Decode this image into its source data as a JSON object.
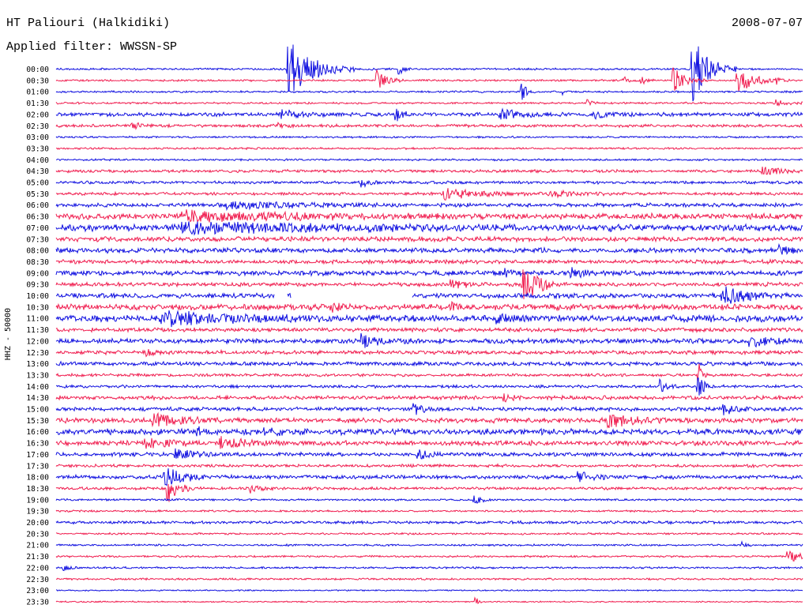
{
  "header": {
    "title": "HT Paliouri (Halkidiki)",
    "filter": "Applied filter: WWSSN-SP",
    "date": "2008-07-07"
  },
  "chart_data": {
    "type": "line",
    "title": "HT Paliouri (Halkidiki)",
    "subtitle": "Applied filter: WWSSN-SP",
    "date": "2008-07-07",
    "ylabel": "HHZ - 50000",
    "series_colors": [
      "#1010e0",
      "#f01e50"
    ],
    "rows": [
      "00:00",
      "00:30",
      "01:00",
      "01:30",
      "02:00",
      "02:30",
      "03:00",
      "03:30",
      "04:00",
      "04:30",
      "05:00",
      "05:30",
      "06:00",
      "06:30",
      "07:00",
      "07:30",
      "08:00",
      "08:30",
      "09:00",
      "09:30",
      "10:00",
      "10:30",
      "11:00",
      "11:30",
      "12:00",
      "12:30",
      "13:00",
      "13:30",
      "14:00",
      "14:30",
      "15:00",
      "15:30",
      "16:00",
      "16:30",
      "17:00",
      "17:30",
      "18:00",
      "18:30",
      "19:00",
      "19:30",
      "20:00",
      "20:30",
      "21:00",
      "21:30",
      "22:00",
      "22:30",
      "23:00",
      "23:30"
    ],
    "row_noise": [
      1.0,
      1.0,
      1.0,
      1.0,
      2.0,
      1.5,
      1.0,
      1.0,
      1.0,
      1.5,
      1.5,
      1.5,
      2.0,
      3.0,
      3.5,
      2.5,
      2.5,
      2.0,
      2.5,
      2.0,
      2.5,
      3.0,
      3.5,
      2.0,
      2.5,
      2.0,
      2.0,
      1.5,
      1.5,
      2.0,
      2.0,
      2.5,
      3.0,
      2.5,
      2.0,
      1.5,
      2.0,
      1.5,
      1.0,
      1.0,
      1.5,
      1.0,
      1.0,
      1.0,
      1.0,
      1.0,
      0.7,
      0.7
    ],
    "row_trend": [
      0,
      0,
      0,
      0,
      0,
      0,
      0,
      0,
      0,
      0,
      0,
      0,
      0,
      0,
      0,
      0,
      0,
      0,
      0,
      0,
      0,
      0,
      0,
      0,
      0,
      0,
      0,
      0,
      0,
      0,
      0,
      0,
      0,
      0,
      0,
      0,
      0,
      0,
      0,
      0,
      0,
      0,
      0,
      0,
      0,
      0,
      0,
      0
    ],
    "events": [
      {
        "row": 0,
        "t": 0.31,
        "amp": 40,
        "dur": 0.03
      },
      {
        "row": 0,
        "t": 0.46,
        "amp": 6,
        "dur": 0.006
      },
      {
        "row": 0,
        "t": 0.852,
        "amp": 44,
        "dur": 0.02
      },
      {
        "row": 1,
        "t": 0.43,
        "amp": 12,
        "dur": 0.012
      },
      {
        "row": 1,
        "t": 0.827,
        "amp": 16,
        "dur": 0.015
      },
      {
        "row": 1,
        "t": 0.913,
        "amp": 18,
        "dur": 0.02
      },
      {
        "row": 1,
        "t": 0.76,
        "amp": 5,
        "dur": 0.006
      },
      {
        "row": 1,
        "t": 0.785,
        "amp": 5,
        "dur": 0.006
      },
      {
        "row": 1,
        "t": 0.965,
        "amp": 4,
        "dur": 0.006
      },
      {
        "row": 2,
        "t": 0.624,
        "amp": 12,
        "dur": 0.006
      },
      {
        "row": 2,
        "t": 0.68,
        "amp": 4,
        "dur": 0.004
      },
      {
        "row": 3,
        "t": 0.712,
        "amp": 5,
        "dur": 0.005
      },
      {
        "row": 3,
        "t": 0.965,
        "amp": 4,
        "dur": 0.012
      },
      {
        "row": 4,
        "t": 0.3,
        "amp": 6,
        "dur": 0.02
      },
      {
        "row": 4,
        "t": 0.455,
        "amp": 8,
        "dur": 0.008
      },
      {
        "row": 4,
        "t": 0.595,
        "amp": 6,
        "dur": 0.03
      },
      {
        "row": 4,
        "t": 0.722,
        "amp": 8,
        "dur": 0.01
      },
      {
        "row": 5,
        "t": 0.102,
        "amp": 5,
        "dur": 0.01
      },
      {
        "row": 5,
        "t": 0.297,
        "amp": 4,
        "dur": 0.008
      },
      {
        "row": 9,
        "t": 0.945,
        "amp": 6,
        "dur": 0.02
      },
      {
        "row": 10,
        "t": 0.41,
        "amp": 5,
        "dur": 0.012
      },
      {
        "row": 11,
        "t": 0.52,
        "amp": 7,
        "dur": 0.04
      },
      {
        "row": 11,
        "t": 0.66,
        "amp": 4,
        "dur": 0.03
      },
      {
        "row": 12,
        "t": 0.23,
        "amp": 4,
        "dur": 0.08
      },
      {
        "row": 13,
        "t": 0.17,
        "amp": 6,
        "dur": 0.12
      },
      {
        "row": 14,
        "t": 0.17,
        "amp": 6,
        "dur": 0.15
      },
      {
        "row": 16,
        "t": 0.97,
        "amp": 5,
        "dur": 0.015
      },
      {
        "row": 18,
        "t": 0.6,
        "amp": 8,
        "dur": 0.008
      },
      {
        "row": 18,
        "t": 0.69,
        "amp": 5,
        "dur": 0.02
      },
      {
        "row": 19,
        "t": 0.625,
        "amp": 24,
        "dur": 0.02
      },
      {
        "row": 19,
        "t": 0.53,
        "amp": 5,
        "dur": 0.02
      },
      {
        "row": 20,
        "t": 0.893,
        "amp": 12,
        "dur": 0.03
      },
      {
        "row": 21,
        "t": 0.365,
        "amp": 6,
        "dur": 0.012
      },
      {
        "row": 21,
        "t": 0.53,
        "amp": 5,
        "dur": 0.008
      },
      {
        "row": 22,
        "t": 0.14,
        "amp": 8,
        "dur": 0.08
      },
      {
        "row": 22,
        "t": 0.59,
        "amp": 6,
        "dur": 0.01
      },
      {
        "row": 24,
        "t": 0.41,
        "amp": 7,
        "dur": 0.025
      },
      {
        "row": 24,
        "t": 0.93,
        "amp": 7,
        "dur": 0.02
      },
      {
        "row": 25,
        "t": 0.12,
        "amp": 5,
        "dur": 0.01
      },
      {
        "row": 27,
        "t": 0.86,
        "amp": 20,
        "dur": 0.004
      },
      {
        "row": 28,
        "t": 0.81,
        "amp": 8,
        "dur": 0.008
      },
      {
        "row": 28,
        "t": 0.86,
        "amp": 14,
        "dur": 0.008
      },
      {
        "row": 29,
        "t": 0.6,
        "amp": 5,
        "dur": 0.01
      },
      {
        "row": 30,
        "t": 0.48,
        "amp": 6,
        "dur": 0.012
      },
      {
        "row": 30,
        "t": 0.895,
        "amp": 7,
        "dur": 0.015
      },
      {
        "row": 31,
        "t": 0.13,
        "amp": 10,
        "dur": 0.03
      },
      {
        "row": 31,
        "t": 0.74,
        "amp": 10,
        "dur": 0.03
      },
      {
        "row": 32,
        "t": 0.19,
        "amp": 6,
        "dur": 0.005
      },
      {
        "row": 32,
        "t": 0.28,
        "amp": 5,
        "dur": 0.02
      },
      {
        "row": 33,
        "t": 0.12,
        "amp": 6,
        "dur": 0.03
      },
      {
        "row": 33,
        "t": 0.22,
        "amp": 7,
        "dur": 0.03
      },
      {
        "row": 34,
        "t": 0.16,
        "amp": 6,
        "dur": 0.03
      },
      {
        "row": 34,
        "t": 0.485,
        "amp": 8,
        "dur": 0.012
      },
      {
        "row": 36,
        "t": 0.145,
        "amp": 16,
        "dur": 0.02
      },
      {
        "row": 36,
        "t": 0.7,
        "amp": 9,
        "dur": 0.015
      },
      {
        "row": 37,
        "t": 0.15,
        "amp": 22,
        "dur": 0.012
      },
      {
        "row": 37,
        "t": 0.26,
        "amp": 5,
        "dur": 0.01
      },
      {
        "row": 38,
        "t": 0.56,
        "amp": 5,
        "dur": 0.01
      },
      {
        "row": 42,
        "t": 0.92,
        "amp": 4,
        "dur": 0.005
      },
      {
        "row": 43,
        "t": 0.98,
        "amp": 7,
        "dur": 0.03
      },
      {
        "row": 44,
        "t": 0.01,
        "amp": 3,
        "dur": 0.01
      },
      {
        "row": 47,
        "t": 0.562,
        "amp": 6,
        "dur": 0.004
      }
    ],
    "gaps": [
      {
        "row": 20,
        "start": 0.293,
        "end": 0.309
      },
      {
        "row": 20,
        "start": 0.315,
        "end": 0.477
      }
    ]
  }
}
